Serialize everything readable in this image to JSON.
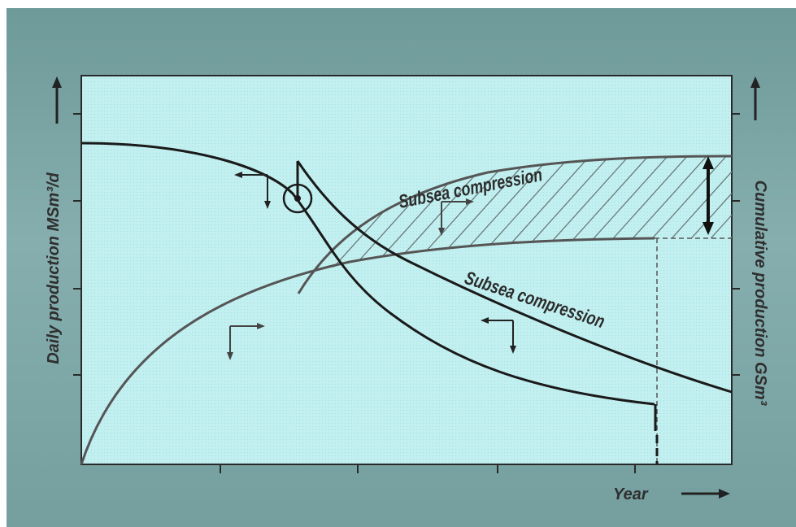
{
  "chart_data": {
    "type": "line",
    "title": "",
    "xlabel": "Year",
    "ylabel_left": "Daily production MSm³/d",
    "ylabel_right": "Cumulative production GSm³",
    "series": [
      {
        "name": "Subsea compression"
      },
      {
        "name": "Subsea compression"
      }
    ],
    "annotations": [
      "Subsea compression",
      "Subsea compression"
    ],
    "colors": {
      "plot_bg": "#c4f0f0",
      "frame": "#2a2a2a",
      "daily_line": "#1a1a1a",
      "cumulative_line": "#555555",
      "hatch": "#6f7f7f",
      "slide_bg": "#7aa3a3"
    },
    "grid": false,
    "legend": "none"
  }
}
